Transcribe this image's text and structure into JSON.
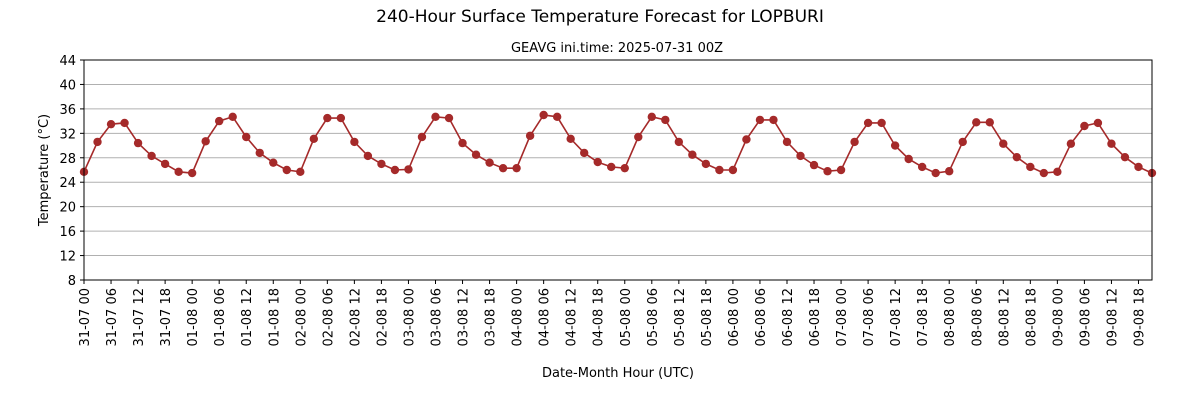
{
  "chart_data": {
    "type": "line",
    "title": "240-Hour Surface Temperature Forecast for LOPBURI",
    "subtitle": "GEAVG ini.time: 2025-07-31 00Z",
    "xlabel": "Date-Month Hour (UTC)",
    "ylabel": "Temperature (°C)",
    "ylim": [
      8,
      44
    ],
    "yticks": [
      8,
      12,
      16,
      20,
      24,
      28,
      32,
      36,
      40,
      44
    ],
    "grid": "horizontal",
    "line_color": "#a52a2a",
    "x_tick_labels": [
      "31-07 00",
      "31-07 06",
      "31-07 12",
      "31-07 18",
      "01-08 00",
      "01-08 06",
      "01-08 12",
      "01-08 18",
      "02-08 00",
      "02-08 06",
      "02-08 12",
      "02-08 18",
      "03-08 00",
      "03-08 06",
      "03-08 12",
      "03-08 18",
      "04-08 00",
      "04-08 06",
      "04-08 12",
      "04-08 18",
      "05-08 00",
      "05-08 06",
      "05-08 12",
      "05-08 18",
      "06-08 00",
      "06-08 06",
      "06-08 12",
      "06-08 18",
      "07-08 00",
      "07-08 06",
      "07-08 12",
      "07-08 18",
      "08-08 00",
      "08-08 06",
      "08-08 12",
      "08-08 18",
      "09-08 00",
      "09-08 06",
      "09-08 12",
      "09-08 18"
    ],
    "x_step_hours": 3,
    "x_start": "31-07 00",
    "values": [
      25.7,
      30.6,
      33.5,
      33.7,
      30.4,
      28.3,
      27.0,
      25.7,
      25.5,
      30.7,
      34.0,
      34.7,
      31.4,
      28.8,
      27.2,
      26.0,
      25.7,
      31.1,
      34.5,
      34.5,
      30.6,
      28.3,
      27.0,
      26.0,
      26.1,
      31.4,
      34.7,
      34.5,
      30.4,
      28.5,
      27.2,
      26.3,
      26.3,
      31.6,
      35.0,
      34.7,
      31.1,
      28.8,
      27.3,
      26.5,
      26.3,
      31.4,
      34.7,
      34.2,
      30.6,
      28.5,
      27.0,
      26.0,
      26.0,
      31.0,
      34.2,
      34.2,
      30.6,
      28.3,
      26.8,
      25.8,
      26.0,
      30.6,
      33.7,
      33.7,
      30.0,
      27.8,
      26.5,
      25.5,
      25.8,
      30.6,
      33.8,
      33.8,
      30.3,
      28.1,
      26.5,
      25.5,
      25.7,
      30.3,
      33.2,
      33.7,
      30.3,
      28.1,
      26.5,
      25.5
    ]
  }
}
